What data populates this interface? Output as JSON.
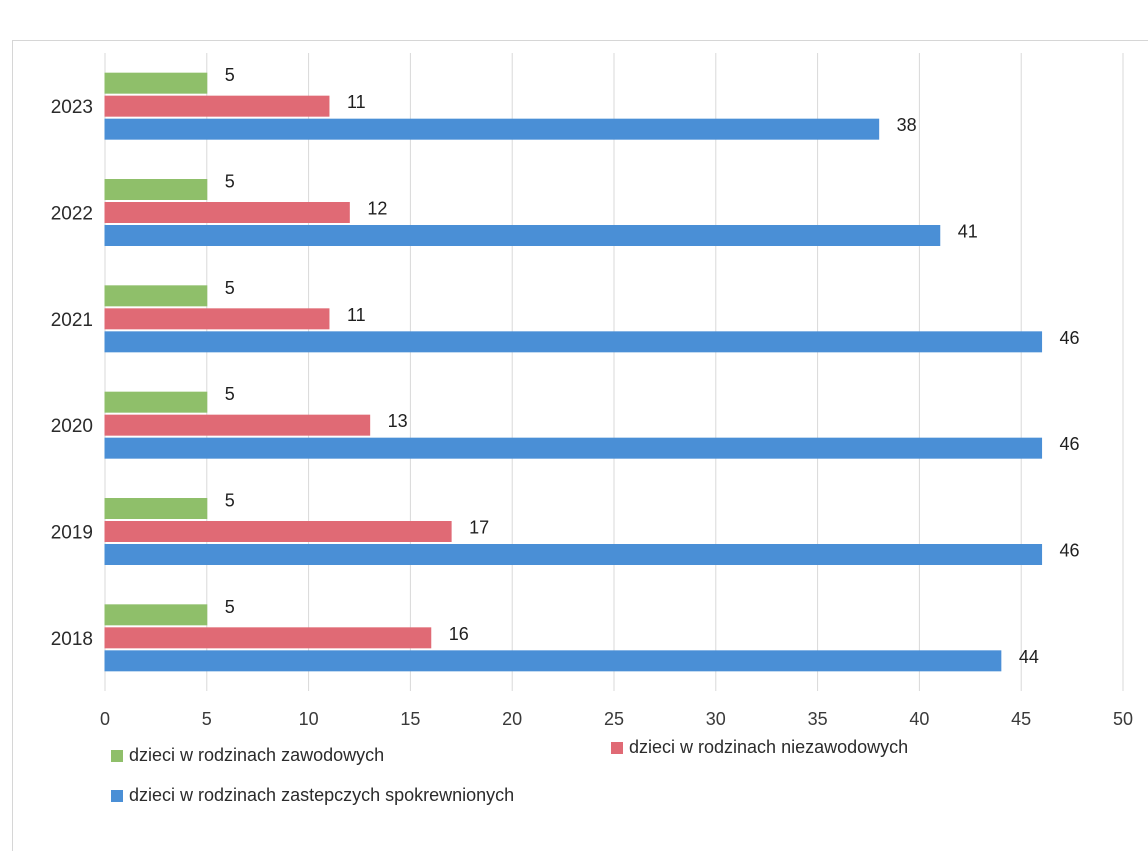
{
  "chart_data": {
    "type": "bar",
    "orientation": "horizontal",
    "categories": [
      "2023",
      "2022",
      "2021",
      "2020",
      "2019",
      "2018"
    ],
    "series": [
      {
        "name": "dzieci w rodzinach zawodowych",
        "color": "#8fbf6a",
        "values": [
          5,
          5,
          5,
          5,
          5,
          5
        ]
      },
      {
        "name": "dzieci w rodzinach niezawodowych",
        "color": "#e06a75",
        "values": [
          11,
          12,
          11,
          13,
          17,
          16
        ]
      },
      {
        "name": "dzieci w rodzinach zastepczych spokrewnionych",
        "color": "#4a8fd6",
        "values": [
          38,
          41,
          46,
          46,
          46,
          44
        ]
      }
    ],
    "x_ticks": [
      "0",
      "5",
      "10",
      "15",
      "20",
      "25",
      "30",
      "35",
      "40",
      "45",
      "50"
    ],
    "xlim": [
      0,
      50
    ],
    "grid": true,
    "legend_position": "bottom",
    "title": "",
    "xlabel": "",
    "ylabel": ""
  }
}
